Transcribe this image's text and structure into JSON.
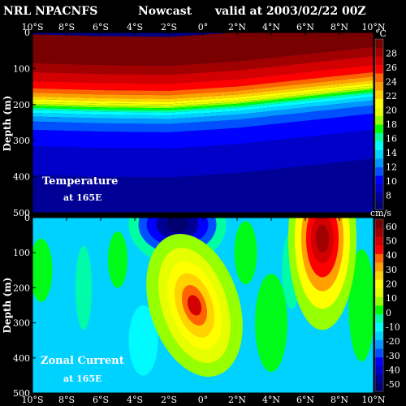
{
  "header": {
    "source": "NRL NPACNFS",
    "run_type": "Nowcast",
    "valid": "valid at 2003/02/22 00Z"
  },
  "chart_data": [
    {
      "type": "heatmap",
      "title": "Temperature",
      "subtitle": "at 165E",
      "ylabel": "Depth (m)",
      "units": "°C",
      "x_ticks": [
        "10°S",
        "8°S",
        "6°S",
        "4°S",
        "2°S",
        "0°",
        "2°N",
        "4°N",
        "6°N",
        "8°N",
        "10°N"
      ],
      "xlim": [
        -10,
        10
      ],
      "y_ticks": [
        "0",
        "100",
        "200",
        "300",
        "400",
        "500"
      ],
      "ylim": [
        0,
        500
      ],
      "colorbar": {
        "ticks": [
          "8",
          "10",
          "12",
          "14",
          "16",
          "18",
          "20",
          "22",
          "24",
          "26",
          "28"
        ],
        "range": [
          6,
          30
        ],
        "colors": [
          "#000070",
          "#000096",
          "#0000c8",
          "#0000ff",
          "#0050ff",
          "#0096ff",
          "#00d2ff",
          "#00ffff",
          "#00ffa0",
          "#00ff00",
          "#96ff00",
          "#e6ff00",
          "#ffff00",
          "#ffd200",
          "#ffa000",
          "#ff6400",
          "#ff0000",
          "#d20000",
          "#a00000",
          "#780000"
        ]
      },
      "thermocline_20C_depth": [
        {
          "x": -10,
          "depth": 205
        },
        {
          "x": -6,
          "depth": 210
        },
        {
          "x": -2,
          "depth": 212
        },
        {
          "x": 2,
          "depth": 200
        },
        {
          "x": 6,
          "depth": 180
        },
        {
          "x": 10,
          "depth": 160
        }
      ]
    },
    {
      "type": "heatmap",
      "title": "Zonal Current",
      "subtitle": "at 165E",
      "ylabel": "Depth (m)",
      "units": "cm/s",
      "x_ticks": [
        "10°S",
        "8°S",
        "6°S",
        "4°S",
        "2°S",
        "0°",
        "2°N",
        "4°N",
        "6°N",
        "8°N",
        "10°N"
      ],
      "xlim": [
        -10,
        10
      ],
      "y_ticks": [
        "0",
        "100",
        "200",
        "300",
        "400",
        "500"
      ],
      "ylim": [
        0,
        500
      ],
      "colorbar": {
        "ticks": [
          "60",
          "50",
          "40",
          "30",
          "20",
          "10",
          "0",
          "-10",
          "-20",
          "-30",
          "-40",
          "-50"
        ],
        "range": [
          -55,
          65
        ],
        "colors": [
          "#000070",
          "#000096",
          "#0000c8",
          "#0000ff",
          "#0050ff",
          "#0096ff",
          "#00d2ff",
          "#00ffff",
          "#00ffa0",
          "#00ff00",
          "#96ff00",
          "#e6ff00",
          "#ffff00",
          "#ffd200",
          "#ffa000",
          "#ff6400",
          "#ff0000",
          "#d20000",
          "#a00000",
          "#780000"
        ]
      },
      "features": [
        {
          "kind": "westward core",
          "x": -1.5,
          "depth": 20,
          "value": -50
        },
        {
          "kind": "undercurrent core",
          "x": -0.5,
          "depth": 250,
          "value": 40
        },
        {
          "kind": "countercurrent core",
          "x": 7,
          "depth": 60,
          "value": 60
        }
      ]
    }
  ]
}
